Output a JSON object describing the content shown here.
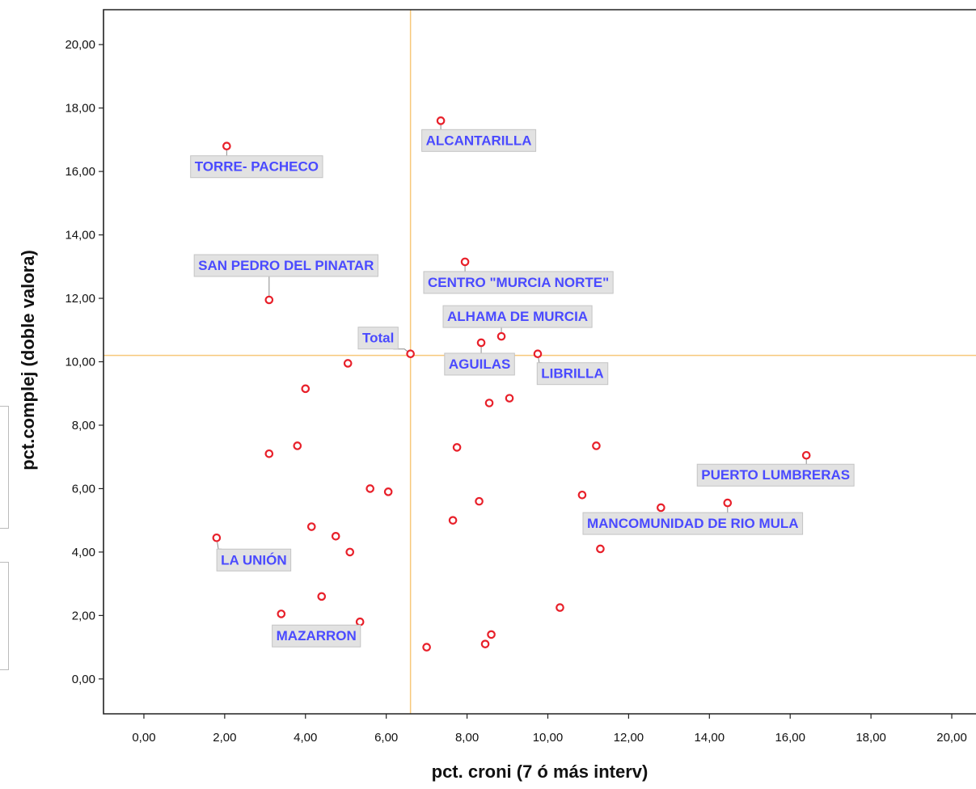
{
  "chart_data": {
    "type": "scatter",
    "xlabel": "pct. croni (7 ó más interv)",
    "ylabel": "pct.complej (doble valora)",
    "xlim": [
      -1.0,
      20.6
    ],
    "ylim": [
      -1.1,
      21.1
    ],
    "xticks": [
      "0,00",
      "2,00",
      "4,00",
      "6,00",
      "8,00",
      "10,00",
      "12,00",
      "14,00",
      "16,00",
      "18,00",
      "20,00"
    ],
    "yticks": [
      "0,00",
      "2,00",
      "4,00",
      "6,00",
      "8,00",
      "10,00",
      "12,00",
      "14,00",
      "16,00",
      "18,00",
      "20,00"
    ],
    "xtick_values": [
      0,
      2,
      4,
      6,
      8,
      10,
      12,
      14,
      16,
      18,
      20
    ],
    "ytick_values": [
      0,
      2,
      4,
      6,
      8,
      10,
      12,
      14,
      16,
      18,
      20
    ],
    "reference_lines": {
      "x": 6.6,
      "y": 10.2,
      "color": "#f7c87a"
    },
    "points": [
      {
        "x": 7.35,
        "y": 17.6,
        "label": "ALCANTARILLA"
      },
      {
        "x": 2.05,
        "y": 16.8,
        "label": "TORRE- PACHECO"
      },
      {
        "x": 7.95,
        "y": 13.15,
        "label": "CENTRO \"MURCIA NORTE\""
      },
      {
        "x": 3.1,
        "y": 11.95,
        "label": "SAN PEDRO DEL PINATAR"
      },
      {
        "x": 8.85,
        "y": 10.8,
        "label": "ALHAMA DE MURCIA"
      },
      {
        "x": 8.35,
        "y": 10.6,
        "label": "AGUILAS"
      },
      {
        "x": 6.6,
        "y": 10.25,
        "label": "Total"
      },
      {
        "x": 9.75,
        "y": 10.25,
        "label": "LIBRILLA"
      },
      {
        "x": 5.05,
        "y": 9.95,
        "label": ""
      },
      {
        "x": 4.0,
        "y": 9.15,
        "label": ""
      },
      {
        "x": 9.05,
        "y": 8.85,
        "label": ""
      },
      {
        "x": 8.55,
        "y": 8.7,
        "label": ""
      },
      {
        "x": 3.8,
        "y": 7.35,
        "label": ""
      },
      {
        "x": 7.75,
        "y": 7.3,
        "label": ""
      },
      {
        "x": 11.2,
        "y": 7.35,
        "label": ""
      },
      {
        "x": 3.1,
        "y": 7.1,
        "label": ""
      },
      {
        "x": 16.4,
        "y": 7.05,
        "label": "PUERTO LUMBRERAS"
      },
      {
        "x": 5.6,
        "y": 6.0,
        "label": ""
      },
      {
        "x": 6.05,
        "y": 5.9,
        "label": ""
      },
      {
        "x": 10.85,
        "y": 5.8,
        "label": ""
      },
      {
        "x": 8.3,
        "y": 5.6,
        "label": ""
      },
      {
        "x": 14.45,
        "y": 5.55,
        "label": "MANCOMUNIDAD DE RIO MULA"
      },
      {
        "x": 12.8,
        "y": 5.4,
        "label": ""
      },
      {
        "x": 7.65,
        "y": 5.0,
        "label": ""
      },
      {
        "x": 4.15,
        "y": 4.8,
        "label": ""
      },
      {
        "x": 4.75,
        "y": 4.5,
        "label": ""
      },
      {
        "x": 1.8,
        "y": 4.45,
        "label": "LA UNIÓN"
      },
      {
        "x": 11.3,
        "y": 4.1,
        "label": ""
      },
      {
        "x": 5.1,
        "y": 4.0,
        "label": ""
      },
      {
        "x": 4.4,
        "y": 2.6,
        "label": ""
      },
      {
        "x": 10.3,
        "y": 2.25,
        "label": ""
      },
      {
        "x": 3.4,
        "y": 2.05,
        "label": ""
      },
      {
        "x": 5.35,
        "y": 1.8,
        "label": "MAZARRON"
      },
      {
        "x": 8.6,
        "y": 1.4,
        "label": ""
      },
      {
        "x": 8.45,
        "y": 1.1,
        "label": ""
      },
      {
        "x": 7.0,
        "y": 1.0,
        "label": ""
      }
    ]
  }
}
